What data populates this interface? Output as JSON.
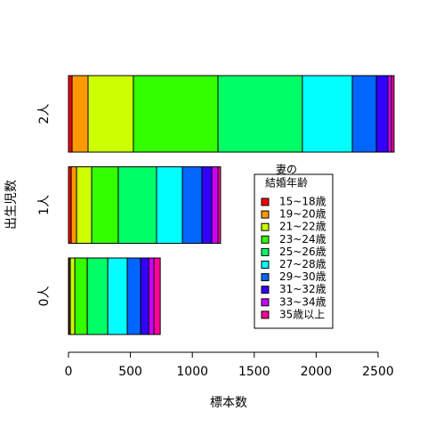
{
  "chart_data": {
    "type": "stacked-barh",
    "xlabel": "標本数",
    "ylabel": "出生児数",
    "categories": [
      "0人",
      "1人",
      "2人"
    ],
    "legend_title": [
      "妻の",
      "結婚年齢"
    ],
    "series": [
      {
        "name": "15~18歳",
        "color": "#FF0000",
        "values": [
          5,
          22,
          29
        ]
      },
      {
        "name": "19~20歳",
        "color": "#FF9900",
        "values": [
          10,
          43,
          129
        ]
      },
      {
        "name": "21~22歳",
        "color": "#CCFF00",
        "values": [
          36,
          122,
          366
        ]
      },
      {
        "name": "23~24歳",
        "color": "#33FF00",
        "values": [
          101,
          215,
          683
        ]
      },
      {
        "name": "25~26歳",
        "color": "#00FF66",
        "values": [
          165,
          309,
          682
        ]
      },
      {
        "name": "27~28歳",
        "color": "#00FFFF",
        "values": [
          158,
          209,
          403
        ]
      },
      {
        "name": "29~30歳",
        "color": "#0066FF",
        "values": [
          108,
          158,
          194
        ]
      },
      {
        "name": "31~32歳",
        "color": "#3300FF",
        "values": [
          65,
          79,
          93
        ]
      },
      {
        "name": "33~34歳",
        "color": "#CC00FF",
        "values": [
          43,
          50,
          29
        ]
      },
      {
        "name": "35歳以上",
        "color": "#FF0099",
        "values": [
          50,
          21,
          21
        ]
      }
    ],
    "xlim": [
      0,
      2500
    ],
    "xticks": [
      0,
      500,
      1000,
      1500,
      2000,
      2500
    ]
  }
}
